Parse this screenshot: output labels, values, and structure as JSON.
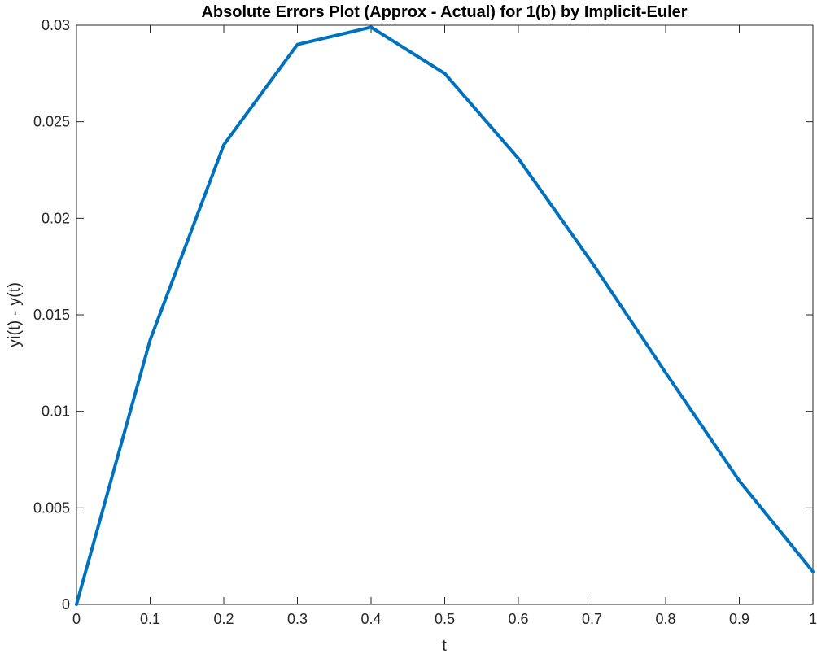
{
  "chart_data": {
    "type": "line",
    "title": "Absolute Errors Plot (Approx - Actual) for 1(b) by Implicit-Euler",
    "xlabel": "t",
    "ylabel": "yi(t) - y(t)",
    "xlim": [
      0,
      1
    ],
    "ylim": [
      0,
      0.03
    ],
    "x_ticks": [
      0,
      0.1,
      0.2,
      0.3,
      0.4,
      0.5,
      0.6,
      0.7,
      0.8,
      0.9,
      1
    ],
    "x_tick_labels": [
      "0",
      "0.1",
      "0.2",
      "0.3",
      "0.4",
      "0.5",
      "0.6",
      "0.7",
      "0.8",
      "0.9",
      "1"
    ],
    "y_ticks": [
      0,
      0.005,
      0.01,
      0.015,
      0.02,
      0.025,
      0.03
    ],
    "y_tick_labels": [
      "0",
      "0.005",
      "0.01",
      "0.015",
      "0.02",
      "0.025",
      "0.03"
    ],
    "grid": false,
    "series": [
      {
        "color": "#0072BD",
        "x": [
          0,
          0.1,
          0.2,
          0.3,
          0.4,
          0.5,
          0.6,
          0.7,
          0.8,
          0.9,
          1.0
        ],
        "y": [
          0,
          0.0137,
          0.0238,
          0.029,
          0.0299,
          0.0275,
          0.0231,
          0.0177,
          0.012,
          0.0064,
          0.0017
        ]
      }
    ]
  }
}
